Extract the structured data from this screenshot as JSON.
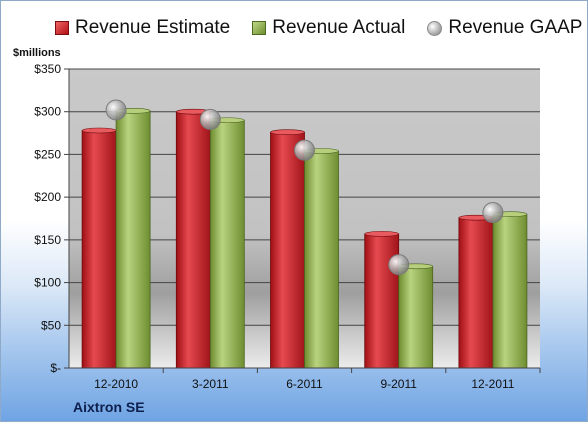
{
  "chart_data": {
    "type": "bar",
    "units_label": "$millions",
    "company": "Aixtron SE",
    "categories": [
      "12-2010",
      "3-2011",
      "6-2011",
      "9-2011",
      "12-2011"
    ],
    "series": [
      {
        "name": "Revenue Estimate",
        "kind": "bar",
        "color": "#c81a20",
        "values": [
          278,
          300,
          276,
          157,
          176
        ]
      },
      {
        "name": "Revenue Actual",
        "kind": "bar",
        "color": "#8fae4f",
        "values": [
          301,
          290,
          254,
          119,
          180
        ]
      },
      {
        "name": "Revenue GAAP",
        "kind": "marker",
        "color": "#a8a8a8",
        "values": [
          302,
          291,
          255,
          121,
          182
        ]
      }
    ],
    "y_ticks": [
      "$-",
      "$50",
      "$100",
      "$150",
      "$200",
      "$250",
      "$300",
      "$350"
    ],
    "ylim": [
      0,
      350
    ],
    "grid": true,
    "legend_position": "top"
  }
}
